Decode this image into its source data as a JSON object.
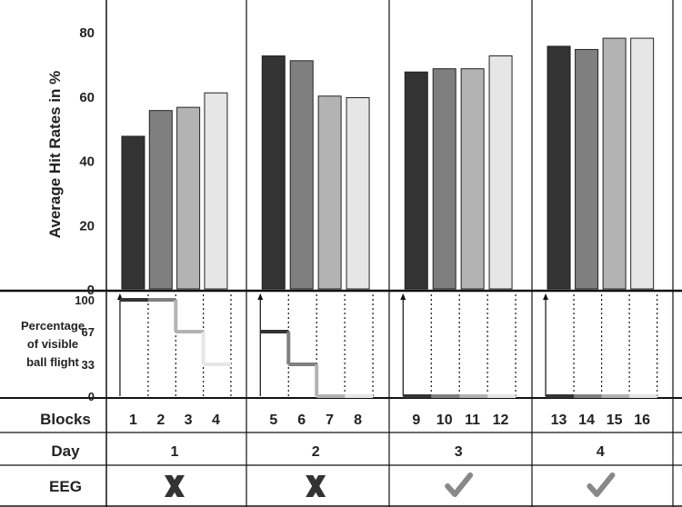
{
  "chart_data": {
    "type": "bar",
    "ylabel": "Average Hit Rates in %",
    "ylim": [
      0,
      90
    ],
    "y_ticks": [
      0,
      20,
      40,
      60,
      80
    ],
    "blocks": [
      "1",
      "2",
      "3",
      "4",
      "5",
      "6",
      "7",
      "8",
      "9",
      "10",
      "11",
      "12",
      "13",
      "14",
      "15",
      "16"
    ],
    "values": [
      47.5,
      55.5,
      56.5,
      61,
      72.5,
      71,
      60,
      59.5,
      67.5,
      68.5,
      68.5,
      72.5,
      75.5,
      74.5,
      78,
      78
    ],
    "bar_colors": [
      "#333333",
      "#7f7f7f",
      "#b3b3b3",
      "#e6e6e6"
    ],
    "visibility_label_lines": [
      "Percentage",
      "of visible",
      "ball flight"
    ],
    "visibility_ticks": [
      "100",
      "67",
      "33",
      "0"
    ],
    "visibility_values": [
      100,
      100,
      67,
      33,
      67,
      33,
      0,
      0,
      0,
      0,
      0,
      0,
      0,
      0,
      0,
      0
    ],
    "days": [
      "1",
      "2",
      "3",
      "4"
    ],
    "eeg": [
      "cross",
      "cross",
      "check",
      "check"
    ],
    "eeg_colors": {
      "cross": "#333333",
      "check": "#888888"
    }
  },
  "table": {
    "blocks_label": "Blocks",
    "day_label": "Day",
    "eeg_label": "EEG"
  }
}
